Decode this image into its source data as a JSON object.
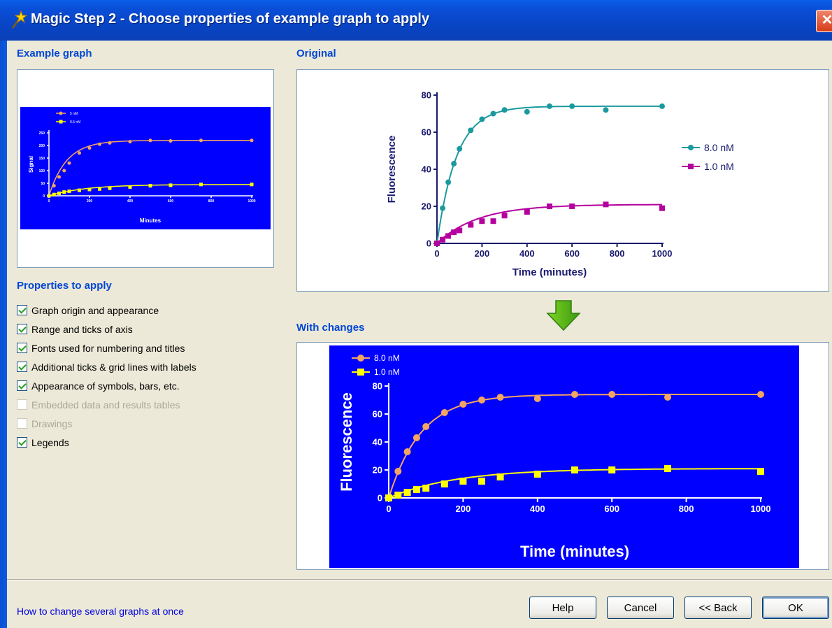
{
  "window": {
    "title": "Magic Step 2 - Choose properties of example graph to apply",
    "close_glyph": "✕"
  },
  "sections": {
    "example_graph": "Example graph",
    "original": "Original",
    "with_changes": "With changes",
    "properties_to_apply": "Properties to apply"
  },
  "properties": [
    {
      "label": "Graph origin and appearance",
      "checked": true,
      "enabled": true
    },
    {
      "label": "Range and ticks of axis",
      "checked": true,
      "enabled": true
    },
    {
      "label": "Fonts used for numbering and titles",
      "checked": true,
      "enabled": true
    },
    {
      "label": "Additional ticks & grid lines with labels",
      "checked": true,
      "enabled": true
    },
    {
      "label": "Appearance of symbols, bars, etc.",
      "checked": true,
      "enabled": true
    },
    {
      "label": "Embedded data and results tables",
      "checked": false,
      "enabled": false
    },
    {
      "label": "Drawings",
      "checked": false,
      "enabled": false
    },
    {
      "label": "Legends",
      "checked": true,
      "enabled": true
    }
  ],
  "footer": {
    "help_link": "How to change several graphs at once",
    "buttons": {
      "help": "Help",
      "cancel": "Cancel",
      "back": "<< Back",
      "ok": "OK"
    }
  },
  "colors": {
    "accent": "#0046D5",
    "teal": "#1A9A9F",
    "magenta": "#B4009E",
    "peach": "#F4A460",
    "yellow": "#FFFF00",
    "blue_bg": "#0000FF"
  },
  "chart_data": [
    {
      "id": "example",
      "type": "scatter",
      "title": "",
      "xlabel": "Minutes",
      "ylabel": "Signal",
      "xlim": [
        0,
        1000
      ],
      "ylim": [
        0,
        250
      ],
      "xticks": [
        0,
        200,
        400,
        600,
        800,
        1000
      ],
      "yticks": [
        0,
        50,
        100,
        150,
        200,
        250
      ],
      "legend_position": "top-left",
      "background": "#0000FF",
      "series": [
        {
          "name": "5 nM",
          "color": "#F4A460",
          "marker": "circle",
          "x": [
            0,
            25,
            50,
            75,
            100,
            150,
            200,
            250,
            300,
            400,
            500,
            600,
            750,
            1000
          ],
          "y": [
            0,
            40,
            75,
            100,
            130,
            170,
            190,
            205,
            210,
            215,
            220,
            218,
            220,
            220
          ]
        },
        {
          "name": "0.5 nM",
          "color": "#FFFF00",
          "marker": "square",
          "x": [
            0,
            25,
            50,
            75,
            100,
            150,
            200,
            250,
            300,
            400,
            500,
            600,
            750,
            1000
          ],
          "y": [
            0,
            5,
            10,
            15,
            18,
            22,
            25,
            27,
            30,
            35,
            40,
            42,
            45,
            45
          ]
        }
      ]
    },
    {
      "id": "original",
      "type": "scatter",
      "title": "",
      "xlabel": "Time (minutes)",
      "ylabel": "Fluorescence",
      "xlim": [
        0,
        1000
      ],
      "ylim": [
        0,
        80
      ],
      "xticks": [
        0,
        200,
        400,
        600,
        800,
        1000
      ],
      "yticks": [
        0,
        20,
        40,
        60,
        80
      ],
      "legend_position": "right",
      "series": [
        {
          "name": "8.0 nM",
          "color": "#1A9A9F",
          "marker": "circle",
          "x": [
            0,
            25,
            50,
            75,
            100,
            150,
            200,
            250,
            300,
            400,
            500,
            600,
            750,
            1000
          ],
          "y": [
            0,
            19,
            33,
            43,
            51,
            61,
            67,
            70,
            72,
            71,
            74,
            74,
            72,
            74
          ]
        },
        {
          "name": "1.0 nM",
          "color": "#B4009E",
          "marker": "square",
          "x": [
            0,
            25,
            50,
            75,
            100,
            150,
            200,
            250,
            300,
            400,
            500,
            600,
            750,
            1000
          ],
          "y": [
            0,
            2,
            4,
            6,
            7,
            10,
            12,
            12,
            15,
            17,
            20,
            20,
            21,
            19
          ]
        }
      ]
    },
    {
      "id": "changed",
      "type": "scatter",
      "title": "",
      "xlabel": "Time (minutes)",
      "ylabel": "Fluorescence",
      "xlim": [
        0,
        1000
      ],
      "ylim": [
        0,
        80
      ],
      "xticks": [
        0,
        200,
        400,
        600,
        800,
        1000
      ],
      "yticks": [
        0,
        20,
        40,
        60,
        80
      ],
      "legend_position": "top-left",
      "background": "#0000FF",
      "series": [
        {
          "name": "8.0 nM",
          "color": "#F4A460",
          "marker": "circle",
          "x": [
            0,
            25,
            50,
            75,
            100,
            150,
            200,
            250,
            300,
            400,
            500,
            600,
            750,
            1000
          ],
          "y": [
            0,
            19,
            33,
            43,
            51,
            61,
            67,
            70,
            72,
            71,
            74,
            74,
            72,
            74
          ]
        },
        {
          "name": "1.0 nM",
          "color": "#FFFF00",
          "marker": "square",
          "x": [
            0,
            25,
            50,
            75,
            100,
            150,
            200,
            250,
            300,
            400,
            500,
            600,
            750,
            1000
          ],
          "y": [
            0,
            2,
            4,
            6,
            7,
            10,
            12,
            12,
            15,
            17,
            20,
            20,
            21,
            19
          ]
        }
      ]
    }
  ]
}
